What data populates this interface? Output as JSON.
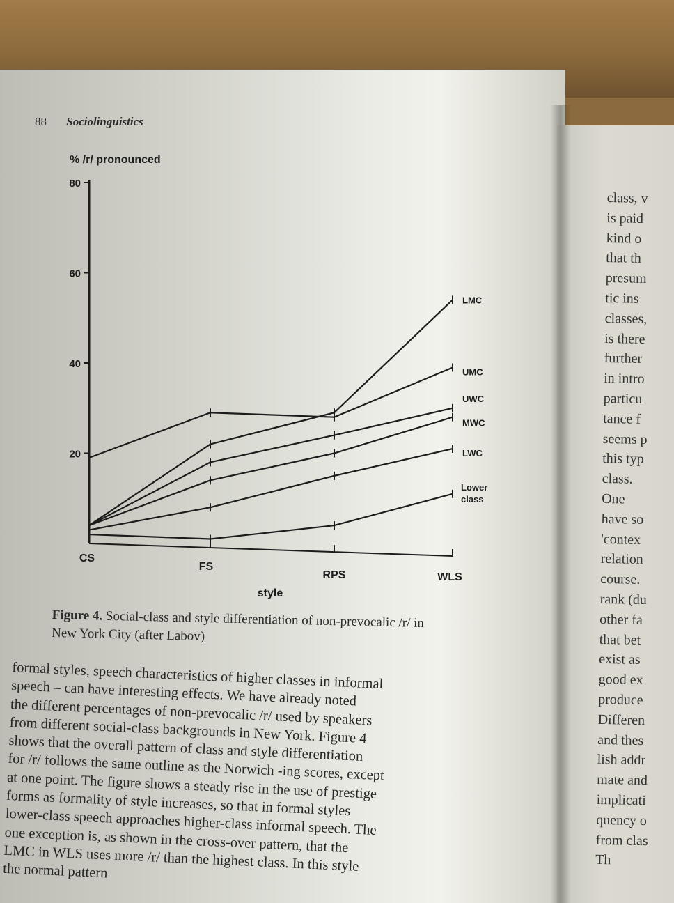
{
  "header": {
    "page_number": "88",
    "book_title": "Sociolinguistics"
  },
  "chart_data": {
    "type": "line",
    "ylabel": "% /r/ pronounced",
    "xlabel": "style",
    "ylim": [
      0,
      80
    ],
    "yticks": [
      "80",
      "60",
      "40",
      "20"
    ],
    "categories": [
      "CS",
      "FS",
      "RPS",
      "WLS"
    ],
    "series": [
      {
        "name": "LMC",
        "values": [
          4,
          22,
          29,
          54
        ]
      },
      {
        "name": "UMC",
        "values": [
          19,
          29,
          28,
          39
        ]
      },
      {
        "name": "UWC",
        "values": [
          4,
          18,
          24,
          30
        ]
      },
      {
        "name": "MWC",
        "values": [
          4,
          14,
          20,
          28
        ]
      },
      {
        "name": "LWC",
        "values": [
          3,
          8,
          15,
          21
        ]
      },
      {
        "name": "Lower class",
        "values": [
          2,
          1,
          4,
          11
        ]
      }
    ]
  },
  "caption": {
    "label": "Figure 4.",
    "text": "Social-class and style differentiation of non-prevocalic /r/ in New York City (after Labov)"
  },
  "body_lines": [
    "formal styles, speech characteristics of higher classes in informal",
    "speech – can have interesting effects. We have already noted",
    "the different percentages of non-prevocalic /r/ used by speakers",
    "from different social-class backgrounds in New York. Figure 4",
    "shows that the overall pattern of class and style differentiation",
    "for /r/ follows the same outline as the Norwich -ing scores, except",
    "at one point. The figure shows a steady rise in the use of prestige",
    "forms as formality of style increases, so that in formal styles",
    "lower-class speech approaches higher-class informal speech. The",
    "one exception is, as shown in the cross-over pattern, that the",
    "LMC in WLS uses more /r/ than the highest class. In this style",
    "the normal pattern"
  ],
  "right_column_lines": [
    "class, v",
    "is paid",
    "kind o",
    "that th",
    "presum",
    "tic ins",
    "classes,",
    "is there",
    "further",
    "in intro",
    "particu",
    "tance f",
    "seems p",
    "this typ",
    "class.",
    "One",
    "have so",
    "'contex",
    "relation",
    "course.",
    "rank (du",
    "other fa",
    "that bet",
    "exist as",
    "good ex",
    "produce",
    "Differen",
    "and thes",
    "lish addr",
    "mate and",
    "implicati",
    "quency o",
    "from clas",
    "Th"
  ]
}
